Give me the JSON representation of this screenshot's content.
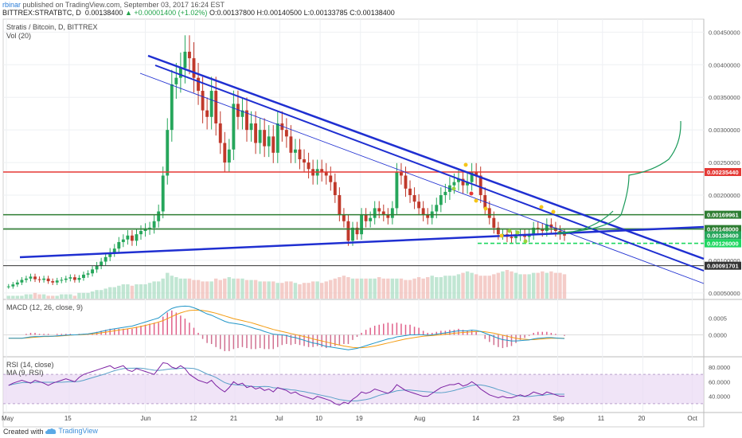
{
  "header": {
    "user": "rbinar",
    "published": "published on TradingView.com, September 03, 2017 16:24 EST",
    "ticker": "BITTREX:STRATBTC, D",
    "last": "0.00138400",
    "change": "▲ +0.00001400 (+1.02%)",
    "open": "O:0.00137800",
    "high": "H:0.00140500",
    "low": "L:0.00133785",
    "close": "C:0.00138400"
  },
  "panels": {
    "price_title": "Stratis / Bitcoin, D, BITTREX",
    "vol_title": "Vol (20)",
    "macd_title": "MACD (12, 26, close, 9)",
    "rsi_title": "RSI (14, close)",
    "rsi_ma_title": "MA (9, RSI)"
  },
  "footer": {
    "created": "Created with",
    "brand": "TradingView"
  },
  "icons": {
    "brand": "tradingview-cloud-icon"
  },
  "colors": {
    "up": "#26a65b",
    "down": "#c0392b",
    "trend": "#1f2fd1",
    "resistance": "#e53935",
    "support": "#2e7d32",
    "dashed": "#1ed760",
    "curve": "#1a9a5a",
    "macd": "#2196c8",
    "signal": "#f39c12",
    "rsi": "#7b1fa2",
    "rsi_band": "#e9d9f3"
  },
  "chart_data": {
    "type": "candlestick",
    "title": "Stratis / Bitcoin, D, BITTREX",
    "date_labels": [
      "May",
      "15",
      "Jun",
      "12",
      "21",
      "Jul",
      "10",
      "19",
      "Aug",
      "14",
      "23",
      "Sep",
      "11",
      "20",
      "Oct"
    ],
    "y_ticks": [
      "0.00450000",
      "0.00400000",
      "0.00350000",
      "0.00300000",
      "0.00250000",
      "0.00200000",
      "0.00150000",
      "0.00100000",
      "0.00050000"
    ],
    "price_range": [
      0.0004,
      0.0047
    ],
    "price_tags": [
      {
        "value": 0.0023544,
        "label": "0.00235440",
        "color": "#e53935"
      },
      {
        "value": 0.00169961,
        "label": "0.00169961",
        "color": "#2e7d32"
      },
      {
        "value": 0.00148,
        "label": "0.00148000",
        "color": "#2e7d32"
      },
      {
        "value": 0.001384,
        "label": "0.00138400",
        "color": "#26a65b"
      },
      {
        "value": 0.00126,
        "label": "0.00126000",
        "color": "#1ed760"
      },
      {
        "value": 0.00091701,
        "label": "0.00091701",
        "color": "#333333"
      }
    ],
    "closes": [
      0.0006,
      0.00063,
      0.00066,
      0.0007,
      0.00072,
      0.00075,
      0.00071,
      0.0007,
      0.00072,
      0.00068,
      0.00066,
      0.00069,
      0.0007,
      0.00072,
      0.00074,
      0.0007,
      0.00073,
      0.00078,
      0.0008,
      0.00086,
      0.00092,
      0.00098,
      0.00105,
      0.00112,
      0.00118,
      0.00128,
      0.00132,
      0.00138,
      0.0013,
      0.0014,
      0.00145,
      0.00148,
      0.0015,
      0.0016,
      0.00175,
      0.0023,
      0.003,
      0.0037,
      0.0038,
      0.00395,
      0.0042,
      0.0041,
      0.0038,
      0.0036,
      0.0033,
      0.0032,
      0.0036,
      0.0031,
      0.0028,
      0.0025,
      0.0027,
      0.0034,
      0.0032,
      0.0033,
      0.003,
      0.0031,
      0.0028,
      0.003,
      0.00275,
      0.0029,
      0.00265,
      0.0031,
      0.003,
      0.0029,
      0.00265,
      0.0027,
      0.00255,
      0.0025,
      0.0024,
      0.0023,
      0.0024,
      0.00235,
      0.0023,
      0.0022,
      0.002,
      0.0017,
      0.0016,
      0.0013,
      0.0015,
      0.0014,
      0.0017,
      0.0016,
      0.00165,
      0.0018,
      0.00175,
      0.0017,
      0.00165,
      0.0018,
      0.00235,
      0.0023,
      0.0021,
      0.002,
      0.0019,
      0.0018,
      0.0017,
      0.00165,
      0.00175,
      0.00185,
      0.002,
      0.00205,
      0.00215,
      0.0022,
      0.00225,
      0.00215,
      0.0022,
      0.00235,
      0.0023,
      0.002,
      0.0018,
      0.00165,
      0.0015,
      0.0014,
      0.0014,
      0.00136,
      0.00134,
      0.00138,
      0.0014,
      0.00136,
      0.0014,
      0.0015,
      0.00148,
      0.00145,
      0.00155,
      0.0015,
      0.00145,
      0.0014,
      0.00138
    ],
    "volumes": [
      0.1,
      0.1,
      0.1,
      0.1,
      0.15,
      0.15,
      0.2,
      0.15,
      0.15,
      0.1,
      0.1,
      0.1,
      0.15,
      0.15,
      0.15,
      0.1,
      0.2,
      0.2,
      0.2,
      0.25,
      0.3,
      0.3,
      0.35,
      0.4,
      0.4,
      0.45,
      0.5,
      0.5,
      0.45,
      0.5,
      0.5,
      0.5,
      0.55,
      0.6,
      0.6,
      0.7,
      0.9,
      0.8,
      0.75,
      0.7,
      0.7,
      0.7,
      0.65,
      0.65,
      0.6,
      0.6,
      0.6,
      0.7,
      0.65,
      0.7,
      0.75,
      0.7,
      0.7,
      0.7,
      0.65,
      0.65,
      0.65,
      0.6,
      0.6,
      0.6,
      0.6,
      0.55,
      0.55,
      0.6,
      0.6,
      0.55,
      0.5,
      0.55,
      0.55,
      0.6,
      0.6,
      0.55,
      0.6,
      0.65,
      0.7,
      0.75,
      0.8,
      0.75,
      0.7,
      0.7,
      0.7,
      0.7,
      0.7,
      0.7,
      0.75,
      0.7,
      0.7,
      0.7,
      0.7,
      0.7,
      0.65,
      0.65,
      0.7,
      0.75,
      0.7,
      0.75,
      0.8,
      0.75,
      0.75,
      0.8,
      0.8,
      0.8,
      0.85,
      0.9,
      0.95,
      0.9,
      0.85,
      0.8,
      0.8,
      0.8,
      0.85,
      0.9,
      0.95,
      1.0,
      0.95,
      0.9,
      0.85,
      0.85,
      0.85,
      0.9,
      0.9,
      0.95,
      0.9,
      0.95,
      0.9,
      0.9,
      0.85
    ],
    "macd_ticks": [
      "0.0005",
      "0.0000"
    ],
    "rsi_ticks": [
      "80.0000",
      "60.0000",
      "40.0000"
    ],
    "rsi_band": [
      30,
      70
    ],
    "rsi": [
      55,
      58,
      60,
      62,
      60,
      58,
      62,
      60,
      58,
      55,
      58,
      60,
      62,
      64,
      62,
      60,
      66,
      70,
      72,
      74,
      76,
      78,
      80,
      82,
      78,
      80,
      82,
      76,
      74,
      78,
      76,
      74,
      72,
      70,
      78,
      86,
      85,
      80,
      78,
      82,
      78,
      70,
      66,
      62,
      60,
      58,
      62,
      55,
      50,
      46,
      52,
      60,
      56,
      58,
      52,
      54,
      50,
      52,
      48,
      50,
      46,
      52,
      50,
      48,
      44,
      46,
      42,
      40,
      38,
      36,
      40,
      38,
      36,
      34,
      30,
      28,
      32,
      30,
      36,
      40,
      46,
      44,
      46,
      50,
      48,
      46,
      44,
      48,
      56,
      52,
      48,
      46,
      44,
      42,
      40,
      40,
      44,
      48,
      52,
      54,
      56,
      56,
      58,
      54,
      56,
      60,
      56,
      50,
      46,
      42,
      40,
      38,
      40,
      38,
      38,
      40,
      42,
      40,
      42,
      46,
      44,
      42,
      46,
      44,
      42,
      40,
      40
    ],
    "macd": [
      -0.0001,
      -0.0001,
      -0.0001,
      -0.0001,
      -8e-05,
      -6e-05,
      -5e-05,
      -5e-05,
      -4e-05,
      -4e-05,
      -4e-05,
      -3e-05,
      -2e-05,
      -1e-05,
      0,
      0,
      1e-05,
      2e-05,
      3e-05,
      5e-05,
      7e-05,
      0.0001,
      0.00013,
      0.00016,
      0.00018,
      0.0002,
      0.00022,
      0.00024,
      0.00026,
      0.0003,
      0.00034,
      0.00038,
      0.00042,
      0.00046,
      0.0005,
      0.0006,
      0.0007,
      0.00078,
      0.00082,
      0.00084,
      0.00085,
      0.00084,
      0.0008,
      0.00075,
      0.00068,
      0.00062,
      0.00058,
      0.00052,
      0.00046,
      0.0004,
      0.00036,
      0.00034,
      0.00032,
      0.0003,
      0.00026,
      0.00022,
      0.00018,
      0.00015,
      0.0001,
      6e-05,
      2e-05,
      1e-05,
      0,
      -2e-05,
      -6e-05,
      -8e-05,
      -0.00012,
      -0.00016,
      -0.0002,
      -0.00024,
      -0.00026,
      -0.0003,
      -0.00034,
      -0.00036,
      -0.00038,
      -0.0004,
      -0.00042,
      -0.00044,
      -0.00042,
      -0.0004,
      -0.00036,
      -0.00032,
      -0.00028,
      -0.00024,
      -0.0002,
      -0.00016,
      -0.00012,
      -0.0001,
      -6e-05,
      -4e-05,
      -2e-05,
      0,
      0,
      1e-05,
      0,
      -1e-05,
      0,
      2e-05,
      4e-05,
      6e-05,
      8e-05,
      0.0001,
      0.00012,
      0.00012,
      0.00012,
      0.00014,
      0.00013,
      0.0001,
      5e-05,
      0,
      -5e-05,
      -0.0001,
      -0.00014,
      -0.00016,
      -0.00018,
      -0.00018,
      -0.00017,
      -0.00016,
      -0.00015,
      -0.00012,
      -0.0001,
      -9e-05,
      -8e-05,
      -8e-05,
      -9e-05,
      -0.0001,
      -0.00011
    ],
    "signal": [
      -0.0001,
      -0.0001,
      -0.0001,
      -0.0001,
      -9e-05,
      -8e-05,
      -7e-05,
      -6e-05,
      -5e-05,
      -5e-05,
      -4e-05,
      -4e-05,
      -3e-05,
      -2e-05,
      -1e-05,
      0,
      0,
      1e-05,
      2e-05,
      3e-05,
      4e-05,
      6e-05,
      8e-05,
      0.0001,
      0.00012,
      0.00014,
      0.00016,
      0.00018,
      0.0002,
      0.00022,
      0.00025,
      0.00028,
      0.00031,
      0.00034,
      0.00038,
      0.00042,
      0.00048,
      0.00054,
      0.0006,
      0.00065,
      0.00069,
      0.00072,
      0.00073,
      0.00073,
      0.00072,
      0.0007,
      0.00067,
      0.00064,
      0.0006,
      0.00056,
      0.00052,
      0.00048,
      0.00045,
      0.00042,
      0.00039,
      0.00036,
      0.00032,
      0.00028,
      0.00024,
      0.0002,
      0.00016,
      0.00013,
      0.0001,
      7e-05,
      4e-05,
      1e-05,
      -2e-05,
      -5e-05,
      -8e-05,
      -0.00012,
      -0.00015,
      -0.00018,
      -0.00021,
      -0.00024,
      -0.00027,
      -0.0003,
      -0.00033,
      -0.00035,
      -0.00037,
      -0.00038,
      -0.00038,
      -0.00037,
      -0.00035,
      -0.00033,
      -0.0003,
      -0.00027,
      -0.00024,
      -0.00021,
      -0.00018,
      -0.00015,
      -0.00012,
      -0.0001,
      -8e-05,
      -6e-05,
      -4e-05,
      -3e-05,
      -2e-05,
      -1e-05,
      0,
      2e-05,
      3e-05,
      5e-05,
      6e-05,
      7e-05,
      8e-05,
      9e-05,
      0.0001,
      0.0001,
      9e-05,
      7e-05,
      5e-05,
      2e-05,
      -1e-05,
      -4e-05,
      -7e-05,
      -0.0001,
      -0.00012,
      -0.00013,
      -0.00014,
      -0.00014,
      -0.00013,
      -0.00012,
      -0.00011,
      -0.0001,
      -0.0001,
      -0.0001,
      -0.0001
    ]
  }
}
